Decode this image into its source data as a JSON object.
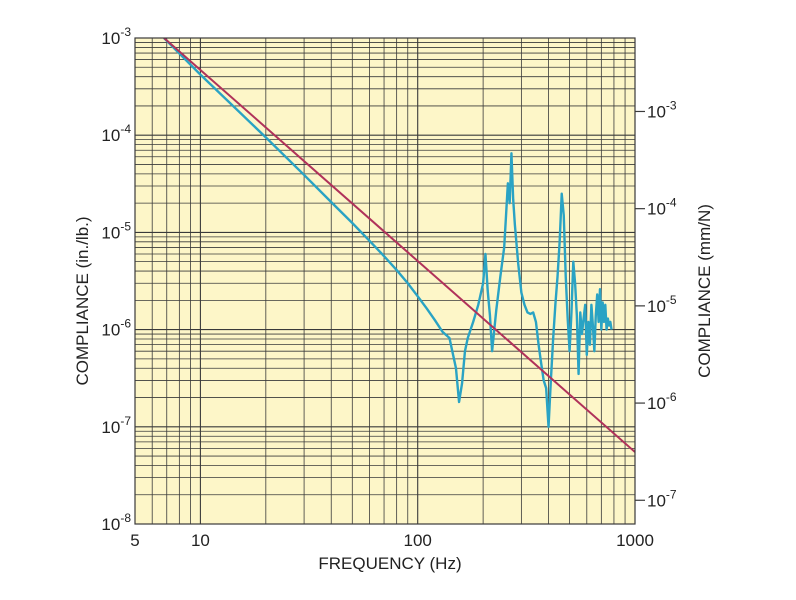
{
  "chart_data": {
    "type": "line",
    "title": "",
    "xlabel": "FREQUENCY (Hz)",
    "ylabel_left": "COMPLIANCE (in./lb.)",
    "ylabel_right": "COMPLIANCE (mm/N)",
    "x_scale": "log",
    "y_scale": "log",
    "xlim": [
      5,
      1000
    ],
    "ylim_left": [
      1e-08,
      0.001
    ],
    "ylim_right": [
      5.7e-08,
      0.0057
    ],
    "grid": true,
    "x_tick_labels": [
      {
        "value": 5,
        "label": "5"
      },
      {
        "value": 10,
        "label": "10"
      },
      {
        "value": 100,
        "label": "100"
      },
      {
        "value": 1000,
        "label": "1000"
      }
    ],
    "y_left_tick_labels": [
      {
        "value": 0.001,
        "base": "10",
        "exp": "-3"
      },
      {
        "value": 0.0001,
        "base": "10",
        "exp": "-4"
      },
      {
        "value": 1e-05,
        "base": "10",
        "exp": "-5"
      },
      {
        "value": 1e-06,
        "base": "10",
        "exp": "-6"
      },
      {
        "value": 1e-07,
        "base": "10",
        "exp": "-7"
      },
      {
        "value": 1e-08,
        "base": "10",
        "exp": "-8"
      }
    ],
    "y_right_tick_labels": [
      {
        "value": 0.001,
        "base": "10",
        "exp": "-3"
      },
      {
        "value": 0.0001,
        "base": "10",
        "exp": "-4"
      },
      {
        "value": 1e-05,
        "base": "10",
        "exp": "-5"
      },
      {
        "value": 1e-06,
        "base": "10",
        "exp": "-6"
      },
      {
        "value": 1e-07,
        "base": "10",
        "exp": "-7"
      }
    ],
    "colors": {
      "background": "#fdf6c8",
      "grid": "#3a3a3a",
      "measured": "#2aa3c4",
      "reference": "#b0325a"
    },
    "series": [
      {
        "style": "reference",
        "x": [
          6.8,
          1000
        ],
        "y": [
          0.001,
          5.5e-08
        ]
      },
      {
        "style": "measured",
        "x": [
          6.8,
          10,
          20,
          30,
          40,
          50,
          60,
          70,
          80,
          90,
          100,
          110,
          120,
          130,
          140,
          150,
          155,
          160,
          165,
          170,
          180,
          190,
          200,
          205,
          210,
          215,
          220,
          230,
          240,
          250,
          255,
          260,
          265,
          270,
          275,
          280,
          290,
          300,
          310,
          320,
          330,
          340,
          350,
          360,
          370,
          380,
          390,
          400,
          410,
          420,
          430,
          440,
          450,
          460,
          470,
          480,
          490,
          500,
          510,
          520,
          530,
          540,
          550,
          560,
          570,
          580,
          590,
          600,
          610,
          620,
          630,
          640,
          650,
          660,
          670,
          680,
          690,
          700,
          710,
          720,
          730,
          740,
          750,
          760,
          770,
          780
        ],
        "y": [
          0.001,
          0.00042,
          9.5e-05,
          3.9e-05,
          2.05e-05,
          1.25e-05,
          8.2e-06,
          5.7e-06,
          4.1e-06,
          3e-06,
          2.2e-06,
          1.65e-06,
          1.25e-06,
          9.5e-07,
          8.2e-07,
          4e-07,
          1.8e-07,
          2.8e-07,
          6e-07,
          8.2e-07,
          1.2e-06,
          1.8e-06,
          3e-06,
          6e-06,
          2.5e-06,
          1.4e-06,
          6e-07,
          1.6e-06,
          3.5e-06,
          7e-06,
          1.5e-05,
          3.2e-05,
          2e-05,
          6.5e-05,
          2.2e-05,
          1.2e-05,
          4.8e-06,
          2.4e-06,
          1.8e-06,
          1.5e-06,
          1.45e-06,
          1.5e-06,
          1.2e-06,
          7e-07,
          4.5e-07,
          3e-07,
          2.5e-07,
          1e-07,
          3e-07,
          8e-07,
          1.8e-06,
          3.5e-06,
          8e-06,
          2.5e-05,
          1.5e-05,
          3.5e-06,
          1.3e-06,
          6e-07,
          1.5e-06,
          5e-06,
          3e-06,
          1.4e-06,
          3.5e-07,
          1.5e-06,
          9e-07,
          1.3e-06,
          1.8e-06,
          5.5e-07,
          1.2e-06,
          7e-07,
          1.8e-06,
          1.1e-06,
          6e-07,
          1.4e-06,
          2.3e-06,
          1.2e-06,
          2.6e-06,
          1e-06,
          1.9e-06,
          1.2e-06,
          1.8e-06,
          1e-06,
          1.3e-06,
          1.1e-06,
          1.2e-06,
          1e-06
        ]
      }
    ]
  }
}
